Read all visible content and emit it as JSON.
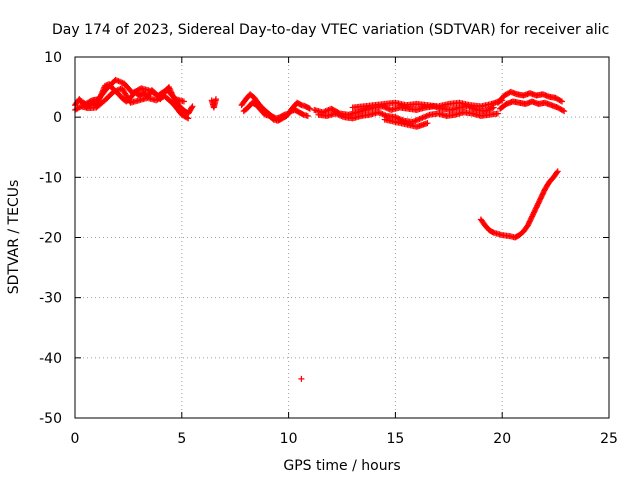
{
  "chart_data": {
    "type": "scatter",
    "title": "Day 174 of 2023, Sidereal Day-to-day VTEC variation (SDTVAR) for receiver alic",
    "xlabel": "GPS time / hours",
    "ylabel": "SDTVAR / TECUs",
    "xlim": [
      0,
      25
    ],
    "ylim": [
      -50,
      10
    ],
    "xticks": [
      0,
      5,
      10,
      15,
      20,
      25
    ],
    "yticks": [
      -50,
      -40,
      -30,
      -20,
      -10,
      0,
      10
    ],
    "xtick_labels": [
      "0",
      "5",
      "10",
      "15",
      "20",
      "25"
    ],
    "ytick_labels": [
      "-50",
      "-40",
      "-30",
      "-20",
      "-10",
      "0",
      "10"
    ],
    "grid": true,
    "marker": "+",
    "color": "#ff0000",
    "series": [
      {
        "name": "SDTVAR",
        "segments": [
          {
            "x": [
              0.0,
              0.2,
              0.4,
              0.6,
              0.8,
              1.0,
              1.2,
              1.4,
              1.6,
              1.8,
              2.0,
              2.2,
              2.4,
              2.6,
              2.8,
              3.0,
              3.2,
              3.4,
              3.6,
              3.8,
              4.0,
              4.2,
              4.4,
              4.6,
              4.8,
              5.0,
              5.3,
              5.5
            ],
            "y": [
              2.0,
              3.0,
              2.2,
              1.8,
              2.4,
              2.0,
              3.5,
              5.2,
              5.5,
              4.6,
              4.0,
              3.2,
              2.6,
              3.2,
              4.2,
              3.6,
              4.0,
              3.4,
              4.5,
              3.8,
              3.0,
              4.2,
              5.0,
              3.4,
              2.2,
              1.4,
              0.6,
              1.8
            ]
          },
          {
            "x": [
              0.0,
              0.3,
              0.6,
              1.0,
              1.4,
              1.8,
              2.2,
              2.6,
              3.0,
              3.4,
              3.8,
              4.2,
              4.6,
              5.0,
              5.3
            ],
            "y": [
              1.2,
              1.8,
              1.5,
              1.6,
              2.8,
              4.2,
              4.8,
              2.4,
              2.8,
              3.2,
              2.8,
              3.5,
              2.2,
              0.4,
              -0.2
            ]
          },
          {
            "x": [
              0.2,
              0.5,
              0.8,
              1.1,
              1.5,
              1.9,
              2.3,
              2.7,
              3.1,
              3.5,
              3.9,
              4.3,
              4.7,
              5.1
            ],
            "y": [
              2.8,
              2.2,
              2.8,
              3.0,
              4.8,
              6.2,
              5.6,
              4.0,
              4.8,
              4.4,
              3.6,
              4.6,
              3.0,
              2.6
            ]
          },
          {
            "x": [
              6.4,
              6.5,
              6.6
            ],
            "y": [
              2.8,
              1.6,
              3.0
            ]
          },
          {
            "x": [
              7.8,
              8.0,
              8.2,
              8.4,
              8.6,
              8.8,
              9.0,
              9.2,
              9.4,
              9.6,
              9.8,
              10.0,
              10.2,
              10.4,
              10.6,
              10.8,
              11.0
            ],
            "y": [
              2.0,
              3.0,
              3.8,
              3.2,
              2.2,
              1.4,
              0.8,
              0.2,
              -0.2,
              0.0,
              0.4,
              0.6,
              1.6,
              2.4,
              2.0,
              1.8,
              1.4
            ]
          },
          {
            "x": [
              7.9,
              8.1,
              8.3,
              8.5,
              8.7,
              8.9,
              9.1,
              9.3,
              9.5,
              9.7,
              9.9,
              10.1,
              10.3,
              10.5,
              10.7,
              10.9
            ],
            "y": [
              1.0,
              1.6,
              2.4,
              2.0,
              1.2,
              0.4,
              0.2,
              -0.4,
              -0.6,
              -0.2,
              0.2,
              1.0,
              1.2,
              0.8,
              0.4,
              0.2
            ]
          },
          {
            "x": [
              11.2,
              11.6,
              12.0,
              12.4,
              12.8,
              13.2,
              13.6,
              14.0,
              14.4,
              14.8,
              15.2,
              15.6,
              16.0,
              16.4,
              16.8,
              17.2,
              17.6,
              18.0,
              18.4,
              18.8,
              19.2,
              19.6
            ],
            "y": [
              1.2,
              0.8,
              1.4,
              0.6,
              0.4,
              0.8,
              1.2,
              1.6,
              1.8,
              1.2,
              1.6,
              1.4,
              1.2,
              1.6,
              1.8,
              1.4,
              1.2,
              1.6,
              1.8,
              1.2,
              1.0,
              1.6
            ]
          },
          {
            "x": [
              11.4,
              11.8,
              12.2,
              12.6,
              13.0,
              13.4,
              13.8,
              14.2,
              14.6,
              15.0,
              15.4,
              15.8,
              16.2,
              16.6,
              17.0,
              17.4,
              17.8,
              18.2,
              18.6,
              19.0,
              19.4,
              19.8
            ],
            "y": [
              0.4,
              0.2,
              0.6,
              0.0,
              -0.2,
              0.2,
              0.4,
              0.8,
              0.2,
              0.0,
              -0.6,
              -0.8,
              -0.2,
              0.4,
              0.6,
              0.2,
              0.4,
              0.8,
              0.6,
              0.2,
              0.4,
              0.6
            ]
          },
          {
            "x": [
              13.0,
              13.5,
              14.0,
              14.5,
              15.0,
              15.5,
              16.0,
              16.5,
              17.0,
              17.5,
              18.0,
              18.5,
              19.0,
              19.5,
              20.0
            ],
            "y": [
              1.6,
              1.8,
              2.0,
              2.2,
              2.4,
              2.0,
              2.2,
              2.0,
              1.8,
              2.2,
              2.4,
              2.0,
              1.8,
              2.2,
              2.8
            ]
          },
          {
            "x": [
              14.5,
              15.0,
              15.5,
              16.0,
              16.5
            ],
            "y": [
              -0.4,
              -0.8,
              -1.2,
              -1.6,
              -1.0
            ]
          },
          {
            "x": [
              19.8,
              20.1,
              20.4,
              20.7,
              21.0,
              21.3,
              21.6,
              21.9,
              22.2,
              22.5,
              22.8
            ],
            "y": [
              2.4,
              3.6,
              4.2,
              3.8,
              3.6,
              4.0,
              3.6,
              3.8,
              3.4,
              3.2,
              2.6
            ]
          },
          {
            "x": [
              19.9,
              20.2,
              20.5,
              20.8,
              21.1,
              21.4,
              21.7,
              22.0,
              22.3,
              22.6,
              22.9
            ],
            "y": [
              1.4,
              2.2,
              2.6,
              2.4,
              2.2,
              2.6,
              2.2,
              2.4,
              2.0,
              1.6,
              1.0
            ]
          },
          {
            "x": [
              19.0,
              19.2,
              19.4,
              19.6,
              19.8,
              20.0,
              20.2,
              20.4,
              20.6,
              20.8,
              21.0,
              21.2,
              21.4,
              21.6,
              21.8,
              22.0,
              22.2,
              22.4,
              22.6
            ],
            "y": [
              -17.0,
              -18.0,
              -18.8,
              -19.2,
              -19.4,
              -19.6,
              -19.7,
              -19.8,
              -20.0,
              -19.6,
              -19.0,
              -18.0,
              -16.5,
              -15.0,
              -13.5,
              -12.0,
              -10.8,
              -10.0,
              -9.0
            ]
          },
          {
            "x": [
              10.6
            ],
            "y": [
              -43.5
            ]
          }
        ]
      }
    ]
  }
}
